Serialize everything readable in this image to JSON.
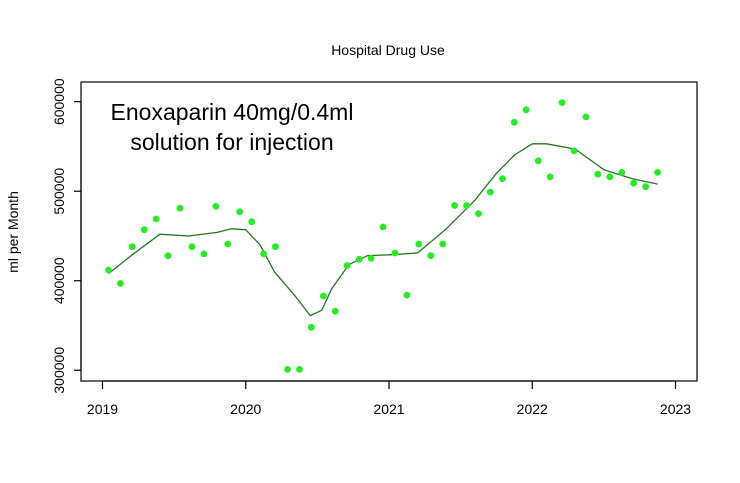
{
  "chart_data": {
    "type": "scatter",
    "title": "Hospital Drug Use",
    "xlabel": "",
    "ylabel": "ml per Month",
    "annotation": [
      "Enoxaparin 40mg/0.4ml",
      "solution for injection"
    ],
    "xlim": [
      2018.85,
      2023.15
    ],
    "ylim": [
      288000,
      622000
    ],
    "x_ticks": [
      2019,
      2020,
      2021,
      2022,
      2023
    ],
    "x_tick_labels": [
      "2019",
      "2020",
      "2021",
      "2022",
      "2023"
    ],
    "y_ticks": [
      300000,
      400000,
      500000,
      600000
    ],
    "y_tick_labels": [
      "300000",
      "400000",
      "500000",
      "600000"
    ],
    "grid": false,
    "colors": {
      "points": "#22ee22",
      "trend": "#1f7a1f"
    },
    "series": [
      {
        "name": "",
        "type": "scatter",
        "x": [
          2019.042,
          2019.125,
          2019.208,
          2019.292,
          2019.375,
          2019.458,
          2019.542,
          2019.625,
          2019.708,
          2019.792,
          2019.875,
          2019.958,
          2020.042,
          2020.125,
          2020.208,
          2020.292,
          2020.375,
          2020.458,
          2020.542,
          2020.625,
          2020.708,
          2020.792,
          2020.875,
          2020.958,
          2021.042,
          2021.125,
          2021.208,
          2021.292,
          2021.375,
          2021.458,
          2021.542,
          2021.625,
          2021.708,
          2021.792,
          2021.875,
          2021.958,
          2022.042,
          2022.125,
          2022.208,
          2022.292,
          2022.375,
          2022.458,
          2022.542,
          2022.625,
          2022.708,
          2022.792,
          2022.875
        ],
        "y": [
          412000,
          397000,
          438000,
          457000,
          469000,
          428000,
          481000,
          438000,
          430000,
          483000,
          441000,
          477000,
          466000,
          430000,
          438000,
          301000,
          301000,
          348000,
          383000,
          366000,
          417000,
          424000,
          425000,
          460000,
          431000,
          384000,
          441000,
          428000,
          441000,
          484000,
          484000,
          475000,
          499000,
          514000,
          577000,
          591000,
          534000,
          516000,
          599000,
          545000,
          583000,
          519000,
          516000,
          521000,
          509000,
          505000,
          521000
        ]
      },
      {
        "name": "",
        "type": "line",
        "x": [
          2019.042,
          2019.2,
          2019.4,
          2019.6,
          2019.8,
          2019.9,
          2020.0,
          2020.1,
          2020.2,
          2020.35,
          2020.45,
          2020.53,
          2020.6,
          2020.72,
          2020.85,
          2021.0,
          2021.2,
          2021.4,
          2021.6,
          2021.75,
          2021.88,
          2022.0,
          2022.1,
          2022.3,
          2022.5,
          2022.7,
          2022.875
        ],
        "y": [
          408000,
          428000,
          452000,
          450000,
          454000,
          458000,
          457000,
          440000,
          410000,
          382000,
          361000,
          367000,
          391000,
          418000,
          428000,
          429000,
          431000,
          458000,
          490000,
          520000,
          541000,
          553000,
          553000,
          547000,
          524000,
          514000,
          508000
        ]
      }
    ]
  }
}
